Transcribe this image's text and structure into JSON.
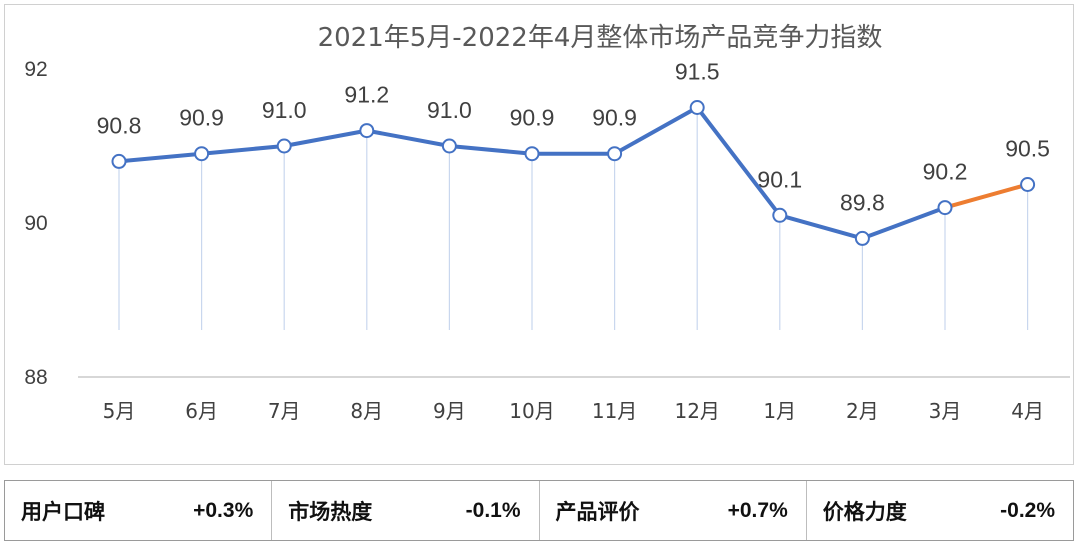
{
  "chart_data": {
    "type": "line",
    "title": "2021年5月-2022年4月整体市场产品竞争力指数",
    "categories": [
      "5月",
      "6月",
      "7月",
      "8月",
      "9月",
      "10月",
      "11月",
      "12月",
      "1月",
      "2月",
      "3月",
      "4月"
    ],
    "values": [
      90.8,
      90.9,
      91.0,
      91.2,
      91.0,
      90.9,
      90.9,
      91.5,
      90.1,
      89.8,
      90.2,
      90.5
    ],
    "data_labels": [
      "90.8",
      "90.9",
      "91.0",
      "91.2",
      "91.0",
      "90.9",
      "90.9",
      "91.5",
      "90.1",
      "89.8",
      "90.2",
      "90.5"
    ],
    "ylim": [
      88,
      92
    ],
    "yticks": [
      "88",
      "90",
      "92"
    ],
    "colors": {
      "line": "#4472c4",
      "last_segment": "#ed7d31",
      "marker_fill": "#ffffff",
      "drop_line": "#c9d7ee"
    },
    "grid": false,
    "xlabel": "",
    "ylabel": ""
  },
  "stats": [
    {
      "label": "用户口碑",
      "value": "+0.3%"
    },
    {
      "label": "市场热度",
      "value": "-0.1%"
    },
    {
      "label": "产品评价",
      "value": "+0.7%"
    },
    {
      "label": "价格力度",
      "value": "-0.2%"
    }
  ]
}
